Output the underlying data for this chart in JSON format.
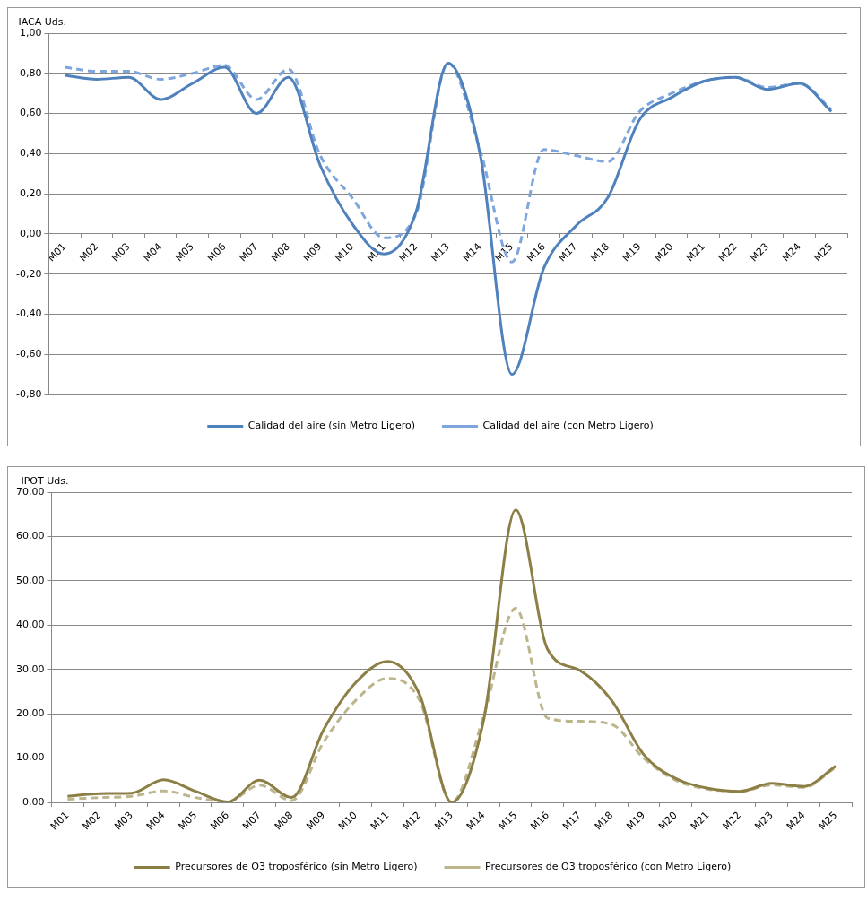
{
  "chart_data": [
    {
      "type": "line",
      "ylabel": "IACA Uds.",
      "categories": [
        "M01",
        "M02",
        "M03",
        "M04",
        "M05",
        "M06",
        "M07",
        "M08",
        "M09",
        "M10",
        "M11",
        "M12",
        "M13",
        "M14",
        "M15",
        "M16",
        "M17",
        "M18",
        "M19",
        "M20",
        "M21",
        "M22",
        "M23",
        "M24",
        "M25"
      ],
      "series": [
        {
          "name": "Calidad del aire (sin Metro Ligero)",
          "color": "#4f81bd",
          "line_style": "solid",
          "values": [
            0.79,
            0.77,
            0.78,
            0.67,
            0.75,
            0.83,
            0.6,
            0.78,
            0.34,
            0.05,
            -0.1,
            0.11,
            0.85,
            0.4,
            -0.7,
            -0.17,
            0.04,
            0.18,
            0.57,
            0.68,
            0.76,
            0.78,
            0.72,
            0.75,
            0.61
          ]
        },
        {
          "name": "Calidad del aire (con Metro Ligero)",
          "color": "#7ea6dc",
          "line_style": "dashed",
          "values": [
            0.83,
            0.81,
            0.81,
            0.77,
            0.8,
            0.84,
            0.67,
            0.82,
            0.39,
            0.18,
            -0.02,
            0.1,
            0.85,
            0.42,
            -0.14,
            0.42,
            0.39,
            0.36,
            0.61,
            0.7,
            0.76,
            0.78,
            0.73,
            0.75,
            0.62
          ]
        }
      ],
      "ylim": [
        -0.8,
        1.0
      ],
      "yticks": [
        {
          "value": -0.8,
          "label": "-0,80"
        },
        {
          "value": -0.6,
          "label": "-0,60"
        },
        {
          "value": -0.4,
          "label": "-0,40"
        },
        {
          "value": -0.2,
          "label": "-0,20"
        },
        {
          "value": 0,
          "label": "0,00"
        },
        {
          "value": 0.2,
          "label": "0,20"
        },
        {
          "value": 0.4,
          "label": "0,40"
        },
        {
          "value": 0.6,
          "label": "0,60"
        },
        {
          "value": 0.8,
          "label": "0,80"
        },
        {
          "value": 1.0,
          "label": "1,00"
        }
      ],
      "grid": "y",
      "legend": "bottom"
    },
    {
      "type": "line",
      "ylabel": "IPOT Uds.",
      "categories": [
        "M01",
        "M02",
        "M03",
        "M04",
        "M05",
        "M06",
        "M07",
        "M08",
        "M09",
        "M10",
        "M11",
        "M12",
        "M13",
        "M14",
        "M15",
        "M16",
        "M17",
        "M18",
        "M19",
        "M20",
        "M21",
        "M22",
        "M23",
        "M24",
        "M25"
      ],
      "series": [
        {
          "name": "Precursores de O3 troposférico (sin Metro Ligero)",
          "color": "#8c7f46",
          "line_style": "solid",
          "values": [
            1.4,
            2.0,
            2.1,
            5.1,
            2.5,
            0.1,
            5.0,
            1.1,
            16.4,
            27,
            31.8,
            24.3,
            0,
            18.6,
            66,
            34.5,
            29.8,
            23,
            10.8,
            5.4,
            3.2,
            2.5,
            4.3,
            3.6,
            8.2
          ]
        },
        {
          "name": "Precursores de O3 troposférico (con Metro Ligero)",
          "color": "#bdb58c",
          "line_style": "dashed",
          "values": [
            0.7,
            1.1,
            1.4,
            2.6,
            1.1,
            0.1,
            3.9,
            0.4,
            13.6,
            23,
            28,
            23,
            0,
            19.5,
            43.8,
            19,
            18.3,
            17.6,
            10,
            5,
            3.0,
            2.5,
            3.9,
            3.4,
            7.9
          ]
        }
      ],
      "ylim": [
        0,
        70
      ],
      "yticks": [
        {
          "value": 0,
          "label": "0,00"
        },
        {
          "value": 10,
          "label": "10,00"
        },
        {
          "value": 20,
          "label": "20,00"
        },
        {
          "value": 30,
          "label": "30,00"
        },
        {
          "value": 40,
          "label": "40,00"
        },
        {
          "value": 50,
          "label": "50,00"
        },
        {
          "value": 60,
          "label": "60,00"
        },
        {
          "value": 70,
          "label": "70,00"
        }
      ],
      "grid": "y",
      "legend": "bottom"
    }
  ]
}
